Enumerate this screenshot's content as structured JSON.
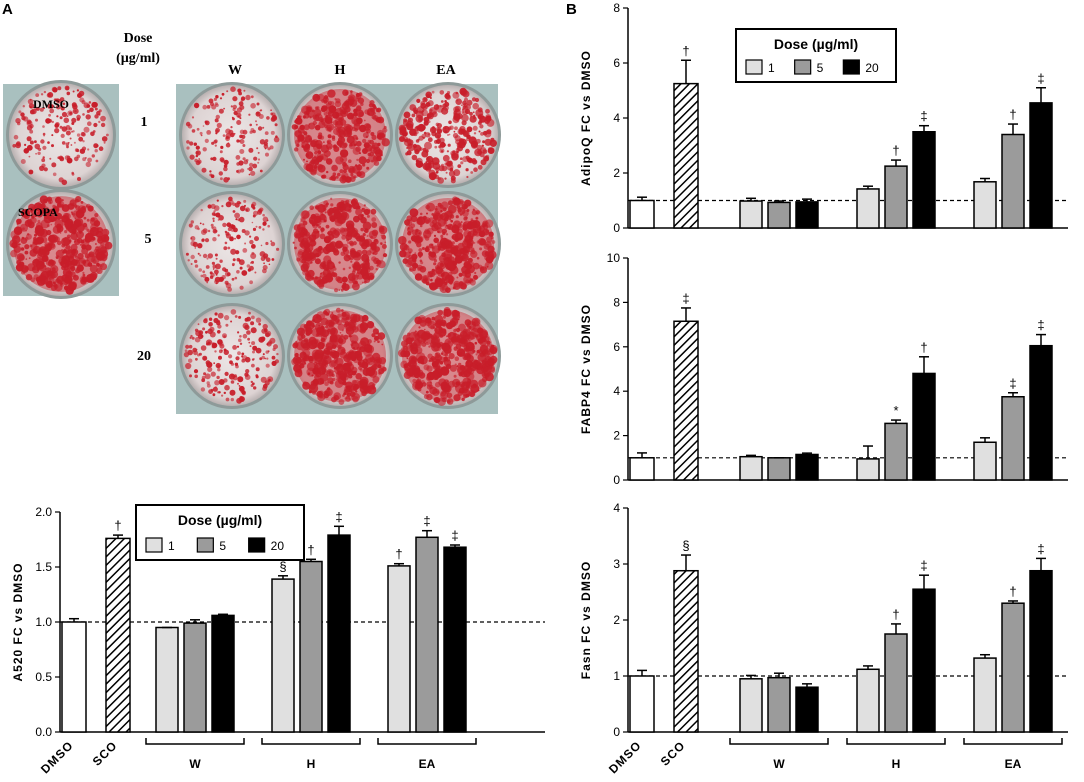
{
  "panels": {
    "a_label": "A",
    "b_label": "B"
  },
  "photo": {
    "dose_header": "Dose",
    "dose_unit": "(µg/ml)",
    "column_labels": [
      "W",
      "H",
      "EA"
    ],
    "row_labels": [
      "1",
      "5",
      "20"
    ],
    "control_labels": [
      "DMSO",
      "SCOPA"
    ],
    "stain_color": "#c81e2a"
  },
  "colors": {
    "dose_1": "#e0e0e0",
    "dose_5": "#9b9b9b",
    "dose_20": "#000000",
    "control": "#ffffff"
  },
  "chart_data": [
    {
      "id": "a520",
      "type": "bar",
      "ylabel": "A520  FC  vs  DMSO",
      "ylim": [
        0,
        2.0
      ],
      "yticks": [
        "0.0",
        "0.5",
        "1.0",
        "1.5",
        "2.0"
      ],
      "reference_line": 1.0,
      "legend": {
        "title": "Dose (µg/ml)",
        "labels": [
          "1",
          "5",
          "20"
        ],
        "placement": "top"
      },
      "controls": [
        {
          "label": "DMSO",
          "value": 1.0,
          "error": 0.03,
          "mark": ""
        },
        {
          "label": "SCO",
          "value": 1.76,
          "error": 0.03,
          "mark": "†"
        }
      ],
      "groups": [
        {
          "label": "W",
          "values": [
            0.95,
            0.99,
            1.06
          ],
          "errors": [
            0.0,
            0.03,
            0.01
          ],
          "marks": [
            "",
            "",
            ""
          ]
        },
        {
          "label": "H",
          "values": [
            1.39,
            1.55,
            1.79
          ],
          "errors": [
            0.03,
            0.02,
            0.08
          ],
          "marks": [
            "§",
            "†",
            "‡"
          ]
        },
        {
          "label": "EA",
          "values": [
            1.51,
            1.77,
            1.68
          ],
          "errors": [
            0.02,
            0.06,
            0.02
          ],
          "marks": [
            "†",
            "‡",
            "‡"
          ]
        }
      ]
    },
    {
      "id": "adipoq",
      "type": "bar",
      "ylabel": "AdipoQ  FC  vs  DMSO",
      "ylim": [
        0,
        8
      ],
      "yticks": [
        "0",
        "2",
        "4",
        "6",
        "8"
      ],
      "reference_line": 1.0,
      "legend": {
        "title": "Dose (µg/ml)",
        "labels": [
          "1",
          "5",
          "20"
        ],
        "placement": "top"
      },
      "controls": [
        {
          "label": "DMSO",
          "value": 1.0,
          "error": 0.12,
          "mark": ""
        },
        {
          "label": "SCO",
          "value": 5.25,
          "error": 0.85,
          "mark": "†"
        }
      ],
      "groups": [
        {
          "label": "W",
          "values": [
            0.98,
            0.93,
            0.95
          ],
          "errors": [
            0.1,
            0.05,
            0.1
          ],
          "marks": [
            "",
            "",
            ""
          ]
        },
        {
          "label": "H",
          "values": [
            1.42,
            2.25,
            3.5
          ],
          "errors": [
            0.1,
            0.22,
            0.22
          ],
          "marks": [
            "",
            "†",
            "‡"
          ]
        },
        {
          "label": "EA",
          "values": [
            1.68,
            3.4,
            4.55
          ],
          "errors": [
            0.12,
            0.38,
            0.55
          ],
          "marks": [
            "",
            "†",
            "‡"
          ]
        }
      ]
    },
    {
      "id": "fabp4",
      "type": "bar",
      "ylabel": "FABP4  FC  vs  DMSO",
      "ylim": [
        0,
        10
      ],
      "yticks": [
        "0",
        "2",
        "4",
        "6",
        "8",
        "10"
      ],
      "reference_line": 1.0,
      "controls": [
        {
          "label": "DMSO",
          "value": 1.0,
          "error": 0.22,
          "mark": ""
        },
        {
          "label": "SCO",
          "value": 7.15,
          "error": 0.6,
          "mark": "‡"
        }
      ],
      "groups": [
        {
          "label": "W",
          "values": [
            1.05,
            1.0,
            1.15
          ],
          "errors": [
            0.06,
            0.0,
            0.06
          ],
          "marks": [
            "",
            "",
            ""
          ]
        },
        {
          "label": "H",
          "values": [
            0.95,
            2.55,
            4.8
          ],
          "errors": [
            0.58,
            0.15,
            0.75
          ],
          "marks": [
            "",
            "*",
            "†"
          ]
        },
        {
          "label": "EA",
          "values": [
            1.7,
            3.75,
            6.05
          ],
          "errors": [
            0.2,
            0.18,
            0.5
          ],
          "marks": [
            "",
            "‡",
            "‡"
          ]
        }
      ]
    },
    {
      "id": "fasn",
      "type": "bar",
      "ylabel": "Fasn  FC  vs  DMSO",
      "ylim": [
        0,
        4
      ],
      "yticks": [
        "0",
        "1",
        "2",
        "3",
        "4"
      ],
      "reference_line": 1.0,
      "controls": [
        {
          "label": "DMSO",
          "value": 1.0,
          "error": 0.1,
          "mark": ""
        },
        {
          "label": "SCO",
          "value": 2.88,
          "error": 0.28,
          "mark": "§"
        }
      ],
      "groups": [
        {
          "label": "W",
          "values": [
            0.95,
            0.97,
            0.8
          ],
          "errors": [
            0.06,
            0.08,
            0.06
          ],
          "marks": [
            "",
            "",
            ""
          ]
        },
        {
          "label": "H",
          "values": [
            1.12,
            1.75,
            2.55
          ],
          "errors": [
            0.06,
            0.18,
            0.25
          ],
          "marks": [
            "",
            "†",
            "‡"
          ]
        },
        {
          "label": "EA",
          "values": [
            1.32,
            2.3,
            2.88
          ],
          "errors": [
            0.06,
            0.04,
            0.22
          ],
          "marks": [
            "",
            "†",
            "‡"
          ]
        }
      ]
    }
  ]
}
